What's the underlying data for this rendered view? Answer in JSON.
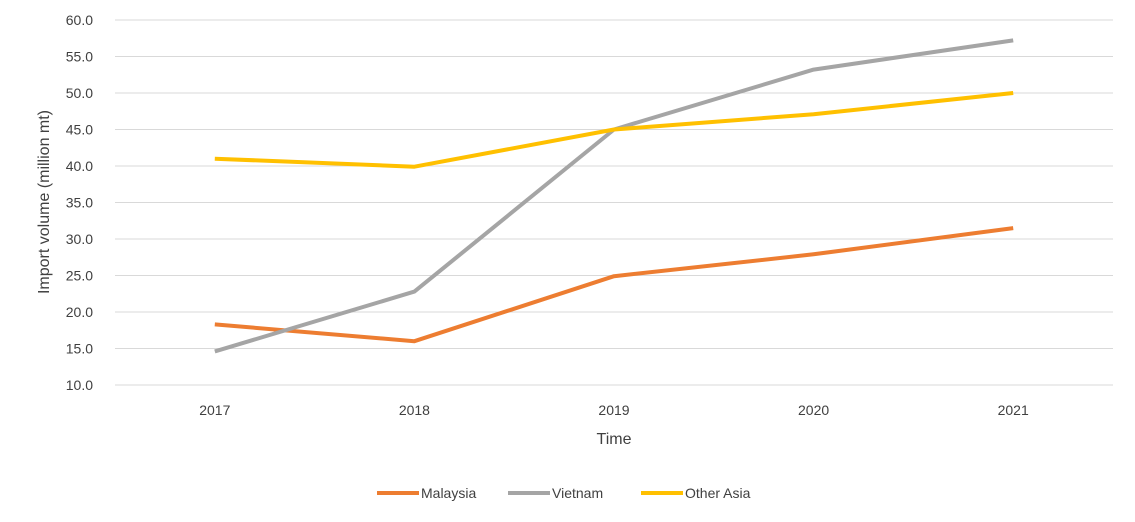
{
  "chart_data": {
    "type": "line",
    "title": "",
    "xlabel": "Time",
    "ylabel": "Import volume (million mt)",
    "categories": [
      "2017",
      "2018",
      "2019",
      "2020",
      "2021"
    ],
    "ylim": [
      10,
      60
    ],
    "yticks": [
      "10.0",
      "15.0",
      "20.0",
      "25.0",
      "30.0",
      "35.0",
      "40.0",
      "45.0",
      "50.0",
      "55.0",
      "60.0"
    ],
    "grid": true,
    "legend_position": "bottom",
    "series": [
      {
        "name": "Malaysia",
        "color": "#ed7d31",
        "values": [
          18.3,
          16.0,
          24.9,
          27.9,
          31.5
        ]
      },
      {
        "name": "Vietnam",
        "color": "#a5a5a5",
        "values": [
          14.6,
          22.8,
          45.0,
          53.2,
          57.2
        ]
      },
      {
        "name": "Other Asia",
        "color": "#ffc000",
        "values": [
          41.0,
          39.9,
          45.0,
          47.1,
          50.0
        ]
      }
    ]
  }
}
